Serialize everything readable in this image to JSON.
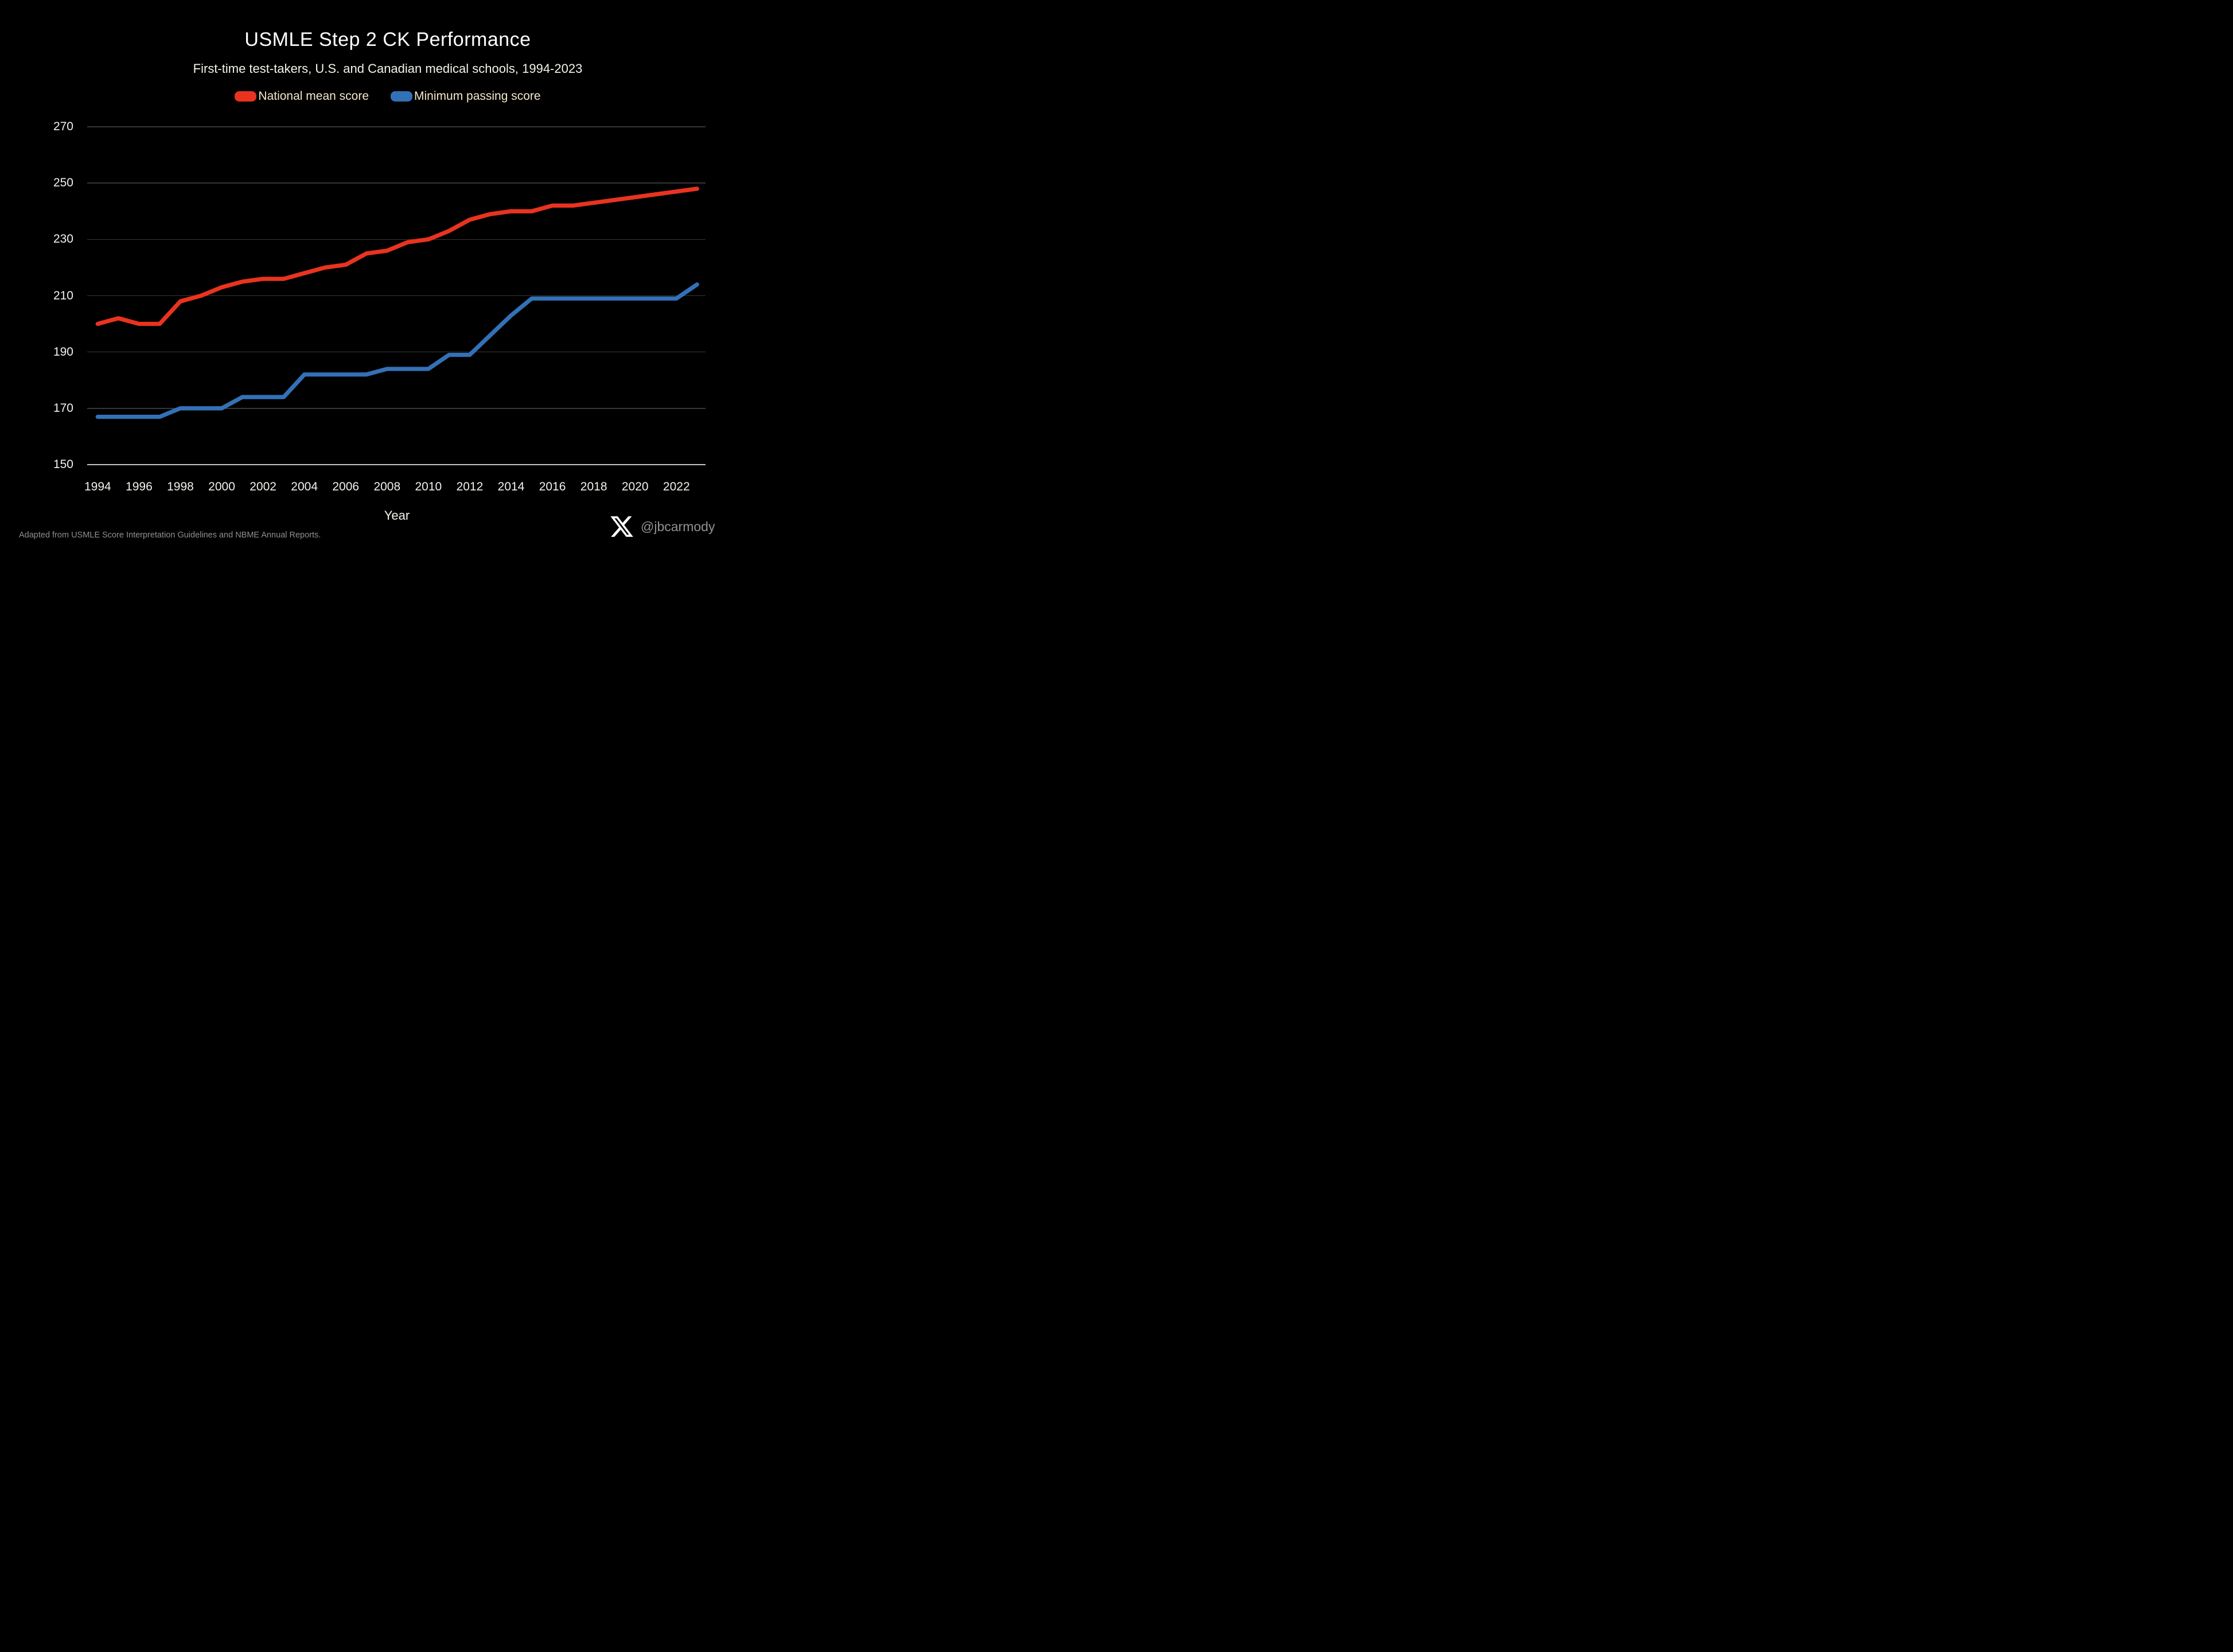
{
  "page": {
    "footnote": "Adapted from USMLE Score Interpretation Guidelines and NBME Annual Reports.",
    "watermark": {
      "icon": "x-logo",
      "handle": "@jbcarmody"
    }
  },
  "colors": {
    "background": "#000000",
    "title_text": "#ffffff",
    "axis_text": "#f2f0ec",
    "legend_text": "#f2e8cc",
    "gridline": "#373737",
    "axis_line": "#c3c3c3",
    "footnote_text": "#8f8f8f",
    "watermark_text": "#919191",
    "national_mean_red": "#e9331f",
    "minimum_passing_blue": "#3371b7"
  },
  "chart_data": {
    "type": "line",
    "title": "USMLE Step 2 CK Performance",
    "subtitle": "First-time test-takers, U.S. and Canadian medical schools, 1994-2023",
    "xlabel": "Year",
    "ylabel": "",
    "ylim": [
      150,
      270
    ],
    "yticks": [
      150,
      170,
      190,
      210,
      230,
      250,
      270
    ],
    "xticks": [
      1994,
      1996,
      1998,
      2000,
      2002,
      2004,
      2006,
      2008,
      2010,
      2012,
      2014,
      2016,
      2018,
      2020,
      2022
    ],
    "grid": "horizontal-only",
    "legend_position": "top-center",
    "x": [
      1994,
      1995,
      1996,
      1997,
      1998,
      1999,
      2000,
      2001,
      2002,
      2003,
      2004,
      2005,
      2006,
      2007,
      2008,
      2009,
      2010,
      2011,
      2012,
      2013,
      2014,
      2015,
      2016,
      2017,
      2018,
      2019,
      2020,
      2021,
      2022,
      2023
    ],
    "series": [
      {
        "name": "National mean score",
        "color": "#e9331f",
        "values": [
          200,
          202,
          200,
          200,
          208,
          210,
          213,
          215,
          216,
          216,
          218,
          220,
          221,
          225,
          226,
          229,
          230,
          233,
          237,
          239,
          240,
          240,
          242,
          242,
          243,
          244,
          245,
          246,
          247,
          248
        ]
      },
      {
        "name": "Minimum passing score",
        "color": "#3371b7",
        "values": [
          167,
          167,
          167,
          167,
          170,
          170,
          170,
          174,
          174,
          174,
          182,
          182,
          182,
          182,
          184,
          184,
          184,
          189,
          189,
          196,
          203,
          209,
          209,
          209,
          209,
          209,
          209,
          209,
          209,
          214
        ]
      }
    ]
  }
}
